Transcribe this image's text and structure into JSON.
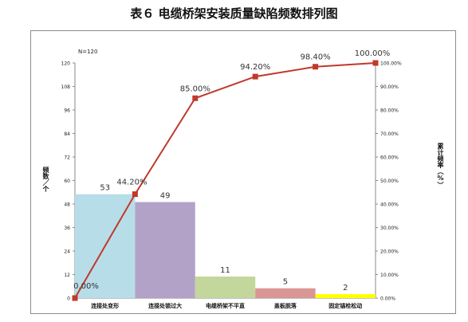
{
  "title": "表６ 电缆桥架安装质量缺陷频数排列图",
  "chart_data": {
    "type": "bar",
    "annotation": "N=120",
    "categories": [
      "连接处变形",
      "连接处锁过大",
      "电缆桥架不平直",
      "盖板脱落",
      "固定锚栓松动"
    ],
    "values": [
      53,
      49,
      11,
      5,
      2
    ],
    "bar_colors": [
      "#b7dde8",
      "#b3a2c7",
      "#c3d69b",
      "#d99694",
      "#ffff00"
    ],
    "cumulative": {
      "x": [
        0,
        1,
        2,
        3,
        4,
        5
      ],
      "values": [
        0.0,
        44.2,
        85.0,
        94.2,
        98.4,
        100.0
      ],
      "labels": [
        "0.00%",
        "44.20%",
        "85.00%",
        "94.20%",
        "98.40%",
        "100.00%"
      ],
      "color": "#c0392b"
    },
    "y_left": {
      "label": "频数／个",
      "ticks": [
        0,
        12,
        24,
        36,
        48,
        60,
        72,
        84,
        96,
        108,
        120
      ],
      "ylim": [
        0,
        120
      ]
    },
    "y_right": {
      "label": "累计频率（%）",
      "ticks": [
        "0.00%",
        "10.00%",
        "20.00%",
        "30.00%",
        "40.00%",
        "50.00%",
        "60.00%",
        "70.00%",
        "80.00%",
        "90.00%",
        "100.00%"
      ],
      "ylim": [
        0,
        100
      ]
    },
    "grid": false
  }
}
